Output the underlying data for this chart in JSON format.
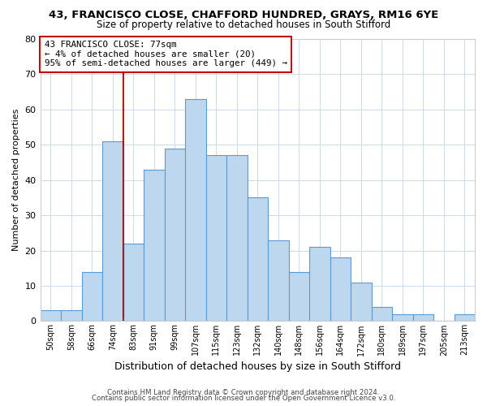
{
  "title1": "43, FRANCISCO CLOSE, CHAFFORD HUNDRED, GRAYS, RM16 6YE",
  "title2": "Size of property relative to detached houses in South Stifford",
  "xlabel": "Distribution of detached houses by size in South Stifford",
  "ylabel": "Number of detached properties",
  "categories": [
    "50sqm",
    "58sqm",
    "66sqm",
    "74sqm",
    "83sqm",
    "91sqm",
    "99sqm",
    "107sqm",
    "115sqm",
    "123sqm",
    "132sqm",
    "140sqm",
    "148sqm",
    "156sqm",
    "164sqm",
    "172sqm",
    "180sqm",
    "189sqm",
    "197sqm",
    "205sqm",
    "213sqm"
  ],
  "values": [
    3,
    3,
    14,
    51,
    22,
    43,
    49,
    63,
    47,
    47,
    35,
    23,
    14,
    21,
    18,
    11,
    4,
    2,
    2,
    0,
    2
  ],
  "bar_color": "#bdd7ee",
  "bar_edge_color": "#5b9bd5",
  "vline_x_idx": 3.5,
  "vline_color": "#c00000",
  "annotation_title": "43 FRANCISCO CLOSE: 77sqm",
  "annotation_line1": "← 4% of detached houses are smaller (20)",
  "annotation_line2": "95% of semi-detached houses are larger (449) →",
  "annotation_box_edge": "#c00000",
  "ylim": [
    0,
    80
  ],
  "yticks": [
    0,
    10,
    20,
    30,
    40,
    50,
    60,
    70,
    80
  ],
  "footer1": "Contains HM Land Registry data © Crown copyright and database right 2024.",
  "footer2": "Contains public sector information licensed under the Open Government Licence v3.0.",
  "bg_color": "#ffffff",
  "grid_color": "#d0dce8"
}
